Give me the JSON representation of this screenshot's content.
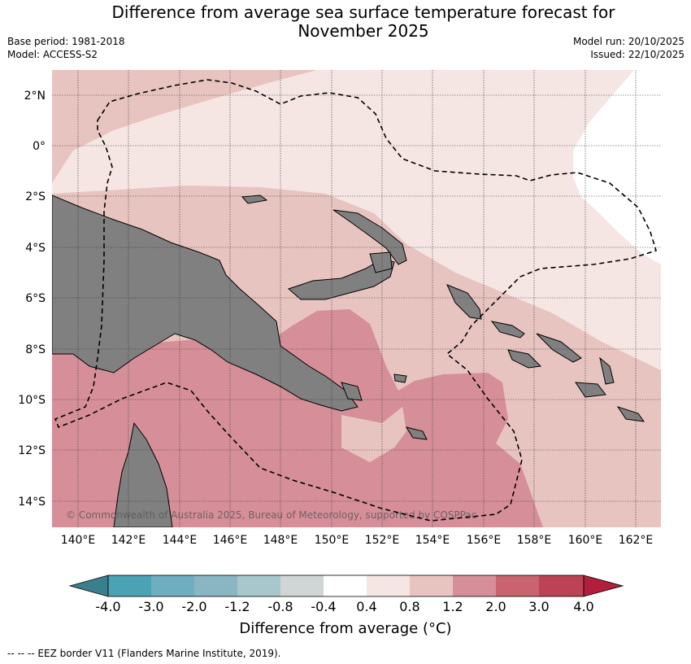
{
  "title_line1": "Difference from average sea surface temperature forecast for",
  "title_line2": "November 2025",
  "base_period": "Base period: 1981-2018",
  "model": "Model: ACCESS-S2",
  "model_run": "Model run: 20/10/2025",
  "issued": "Issued: 22/10/2025",
  "copyright": "© Commonwealth of Australia 2025, Bureau of Meteorology, supported by COSPPac",
  "lat_labels": [
    "2°N",
    "0°",
    "2°S",
    "4°S",
    "6°S",
    "8°S",
    "10°S",
    "12°S",
    "14°S"
  ],
  "lon_labels": [
    "140°E",
    "142°E",
    "144°E",
    "146°E",
    "148°E",
    "150°E",
    "152°E",
    "154°E",
    "156°E",
    "158°E",
    "160°E",
    "162°E"
  ],
  "colorbar": {
    "ticks": [
      "-4.0",
      "-3.0",
      "-2.0",
      "-1.2",
      "-0.8",
      "-0.4",
      "0.4",
      "0.8",
      "1.2",
      "2.0",
      "3.0",
      "4.0"
    ],
    "colors": [
      "#3a7f8c",
      "#4aa2b4",
      "#6eaec0",
      "#8ab5c2",
      "#a8c7cc",
      "#d0d6d6",
      "#ffffff",
      "#f5e6e4",
      "#e8c4c0",
      "#d68f98",
      "#c9646f",
      "#bc4353",
      "#b11f3d"
    ],
    "label": "Difference from average (°C)"
  },
  "legend_note": "--  --  -- EEZ border V11 (Flanders Marine Institute, 2019).",
  "colors": {
    "land": "#808080",
    "grid": "#333333"
  }
}
